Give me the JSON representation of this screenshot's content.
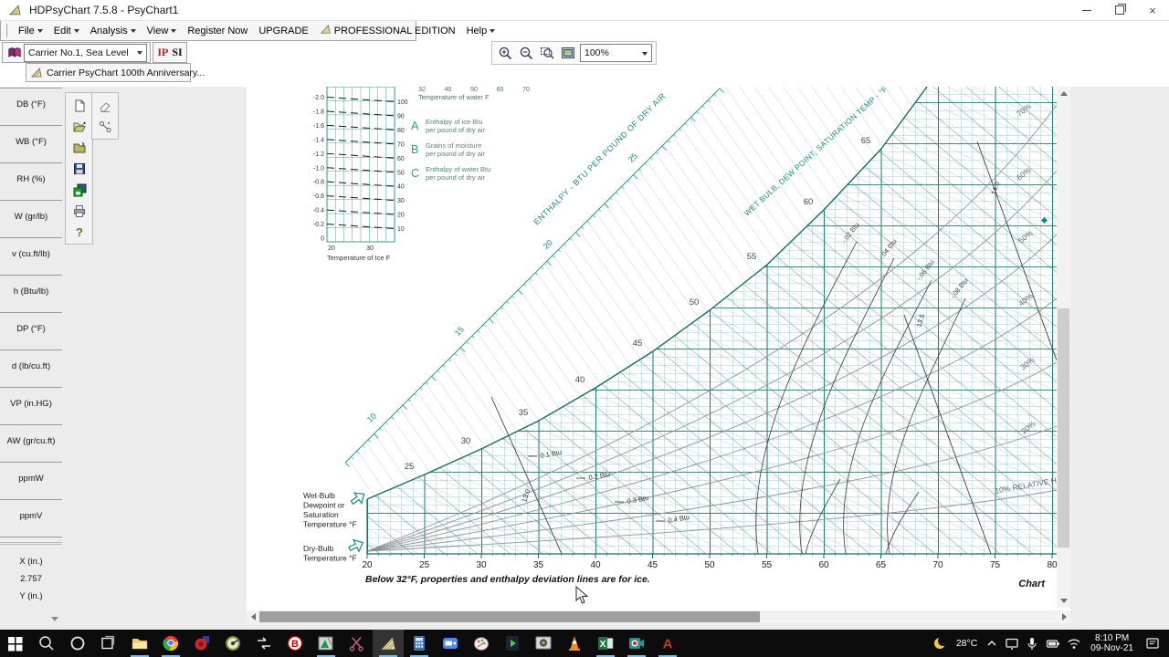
{
  "window": {
    "title": "HDPsyChart 7.5.8 - PsyChart1"
  },
  "menu": {
    "items": [
      {
        "label": "File",
        "caret": true
      },
      {
        "label": "Edit",
        "caret": true
      },
      {
        "label": "Analysis",
        "caret": true
      },
      {
        "label": "View",
        "caret": true
      },
      {
        "label": "Register Now",
        "caret": false
      },
      {
        "label": "UPGRADE",
        "caret": false
      },
      {
        "label": "PROFESSIONAL EDITION",
        "caret": false,
        "logo": true
      },
      {
        "label": "Help",
        "caret": true
      }
    ]
  },
  "toolbars": {
    "preset_dropdown": "Carrier No.1, Sea Level",
    "unit_ip": "IP",
    "unit_si": "SI",
    "anniversary_button": "Carrier PsyChart 100th Anniversary...",
    "zoom_value": "100%"
  },
  "sidebar": {
    "fields": [
      "DB (°F)",
      "WB (°F)",
      "RH (%)",
      "W (gr/lb)",
      "v (cu.ft/lb)",
      "h (Btu/lb)",
      "DP (°F)",
      "d (lb/cu.ft)",
      "VP (in.HG)",
      "AW (gr/cu.ft)",
      "ppmW",
      "ppmV"
    ],
    "coords": {
      "x_label": "X (in.)",
      "x_value": "2.757",
      "y_label": "Y (in.)"
    }
  },
  "chart": {
    "x_ticks": [
      20,
      25,
      30,
      35,
      40,
      45,
      50,
      55,
      60,
      65,
      70,
      75,
      80
    ],
    "saturation_labels": [
      25,
      30,
      35,
      40,
      45,
      50,
      55,
      60,
      65
    ],
    "enthalpy_scale_labels": [
      10,
      15,
      20,
      25
    ],
    "enthalpy_axis_title": "ENTHALPY - BTU PER POUND OF DRY AIR",
    "wetbulb_axis_title": "WET BULB, DEW POINT, SATURATION TEMP - °F",
    "rh_labels": [
      "70%",
      "60%",
      "50%",
      "40%",
      "30%",
      "20%",
      "10% RELATIVE HUMIDITY"
    ],
    "deviation_labels_upper": [
      "-.02 Btu",
      "-.04 Btu",
      "-.06 Btu",
      "-.08 Btu"
    ],
    "deviation_labels_lower": [
      "0.1 Btu",
      "0.2 Btu",
      "0.3 Btu",
      "0.4 Btu"
    ],
    "volume_labels": [
      "13.0",
      "13.5",
      "14.0"
    ],
    "wet_bulb_caption": [
      "Wet-Bulb",
      "Dewpoint or",
      "Saturation",
      "Temperature °F"
    ],
    "dry_bulb_caption": [
      "Dry-Bulb",
      "Temperature °F"
    ],
    "ice_note": "Below 32°F, properties and enthalpy deviation lines are for ice.",
    "chart_word": "Chart",
    "legend": [
      {
        "key": "A",
        "line1": "Enthalpy of ice Btu",
        "line2": "per pound of dry air"
      },
      {
        "key": "B",
        "line1": "Grains of moisture",
        "line2": "per pound of dry air"
      },
      {
        "key": "C",
        "line1": "Enthalpy of water Btu",
        "line2": "per pound of dry air"
      }
    ],
    "inset": {
      "left_ticks": [
        "-2.0",
        "-1.8",
        "-1.6",
        "-1.4",
        "-1.2",
        "-1.0",
        "-0.8",
        "-0.6",
        "-0.4",
        "-0.2",
        "0"
      ],
      "right_ticks": [
        "100",
        "90",
        "80",
        "70",
        "60",
        "50",
        "40",
        "30",
        "20",
        "10"
      ],
      "bottom_ticks": [
        "20",
        "30"
      ],
      "caption": "Temperature of Ice F",
      "water_ticks": [
        "32",
        "40",
        "50",
        "60",
        "70"
      ],
      "water_caption": "Temperature of water F"
    }
  },
  "taskbar": {
    "apps": [
      {
        "name": "start"
      },
      {
        "name": "search"
      },
      {
        "name": "cortana"
      },
      {
        "name": "task-view"
      },
      {
        "name": "file-explorer",
        "open": true
      },
      {
        "name": "chrome",
        "open": true
      },
      {
        "name": "blower-app"
      },
      {
        "name": "valve-app"
      },
      {
        "name": "arrows-app"
      },
      {
        "name": "ruby-app"
      },
      {
        "name": "cad-tool",
        "open": true
      },
      {
        "name": "snip-tool"
      },
      {
        "name": "hdpsychart",
        "open": true,
        "focused": true
      },
      {
        "name": "calculator",
        "open": true
      },
      {
        "name": "zoom-app"
      },
      {
        "name": "paint3d"
      },
      {
        "name": "shortcut-app"
      },
      {
        "name": "media-player"
      },
      {
        "name": "vlc"
      },
      {
        "name": "excel",
        "open": true
      },
      {
        "name": "screen-recorder",
        "open": true
      },
      {
        "name": "autocad",
        "open": true
      }
    ],
    "tray": {
      "temp": "28°C",
      "time": "8:10 PM",
      "date": "09-Nov-21"
    }
  }
}
